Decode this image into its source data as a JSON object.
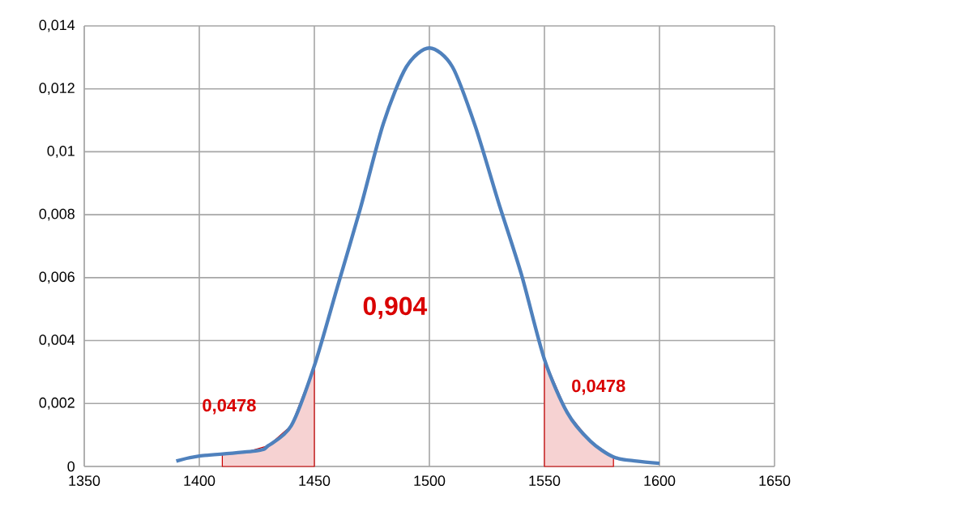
{
  "chart_data": {
    "type": "line",
    "xlim": [
      1350,
      1650
    ],
    "xticks": [
      1350,
      1400,
      1450,
      1500,
      1550,
      1600,
      1650
    ],
    "ylim": [
      0,
      0.014
    ],
    "yticks": [
      {
        "value": 0,
        "label": "0"
      },
      {
        "value": 0.002,
        "label": "0,002"
      },
      {
        "value": 0.004,
        "label": "0,004"
      },
      {
        "value": 0.006,
        "label": "0,006"
      },
      {
        "value": 0.008,
        "label": "0,008"
      },
      {
        "value": 0.01,
        "label": "0,01"
      },
      {
        "value": 0.012,
        "label": "0,012"
      },
      {
        "value": 0.014,
        "label": "0,014"
      }
    ],
    "grid": true,
    "marker": "none",
    "line_style": "solid",
    "series": [
      {
        "type": "area",
        "color": "#f6d2d2",
        "x": [
          1410,
          1420,
          1430,
          1440,
          1450
        ],
        "values": [
          0.0004,
          0.00045,
          0.00066,
          0.0013,
          0.0032
        ]
      },
      {
        "type": "area",
        "color": "#f6d2d2",
        "x": [
          1550,
          1560,
          1570,
          1580
        ],
        "values": [
          0.0034,
          0.0017,
          0.0008,
          0.0003
        ]
      },
      {
        "color": "#4f81bd",
        "x": [
          1390,
          1400,
          1425,
          1430,
          1440,
          1450,
          1460,
          1470,
          1480,
          1490,
          1500,
          1510,
          1520,
          1530,
          1540,
          1550,
          1560,
          1570,
          1580,
          1590,
          1600
        ],
        "values": [
          0.00017,
          0.00033,
          0.0005,
          0.00066,
          0.0013,
          0.0032,
          0.0057,
          0.0082,
          0.0109,
          0.0127,
          0.0133,
          0.0127,
          0.0108,
          0.0084,
          0.0061,
          0.0034,
          0.0017,
          0.0008,
          0.0003,
          0.00017,
          0.0001
        ]
      }
    ],
    "annotations": [
      "0,904",
      "0,0478",
      "0,0478"
    ]
  }
}
